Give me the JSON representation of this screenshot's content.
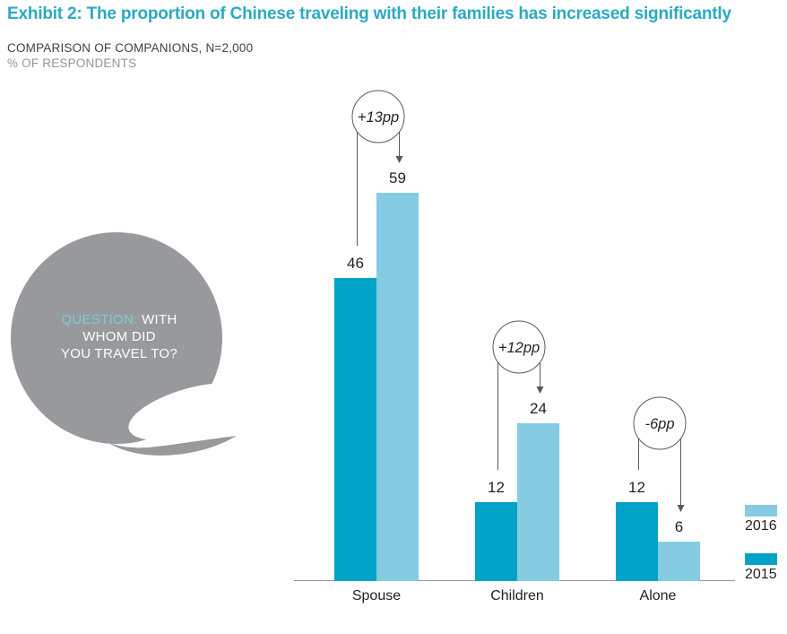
{
  "header": {
    "title": "Exhibit 2: The proportion of Chinese traveling with their families has increased significantly",
    "subtitle": "COMPARISON OF COMPANIONS, N=2,000",
    "unit_label": "% OF RESPONDENTS"
  },
  "bubble": {
    "prefix": "QUESTION:",
    "line1_rest": " WITH",
    "line2": "WHOM DID",
    "line3": "YOU TRAVEL TO?"
  },
  "chart_data": {
    "type": "bar",
    "title": "Exhibit 2: The proportion of Chinese traveling with their families has increased significantly",
    "subtitle": "COMPARISON OF COMPANIONS, N=2,000",
    "ylabel": "% OF RESPONDENTS",
    "xlabel": "",
    "categories": [
      "Spouse",
      "Children",
      "Alone"
    ],
    "series": [
      {
        "name": "2015",
        "color": "#00A2C8",
        "values": [
          46,
          12,
          12
        ]
      },
      {
        "name": "2016",
        "color": "#85CBE2",
        "values": [
          59,
          24,
          6
        ]
      }
    ],
    "annotations": [
      "+13pp",
      "+12pp",
      "-6pp"
    ],
    "grid": false,
    "legend_position": "right",
    "ylim": [
      0,
      65
    ]
  },
  "colors": {
    "title_teal": "#2BA9C2",
    "bubble_gray": "#97999C",
    "bubble_accent": "#7DCED2",
    "annotation_line": "#58595B",
    "axis_line": "#939598",
    "text_dark": "#414042",
    "text_gray": "#939598",
    "text_darkest": "#231F20"
  }
}
